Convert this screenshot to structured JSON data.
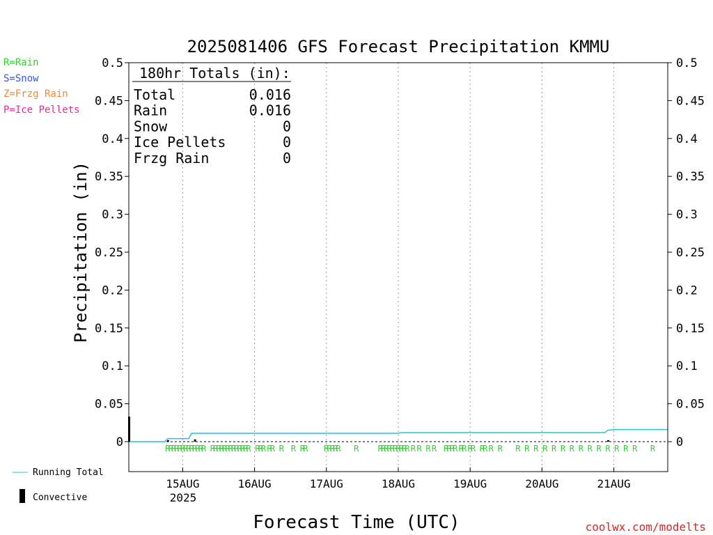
{
  "chart_data": {
    "type": "line",
    "title": "2025081406 GFS Forecast Precipitation KMMU",
    "xlabel": "Forecast Time (UTC)",
    "ylabel": "Precipitation (in)",
    "ylim": [
      0,
      0.5
    ],
    "y_ticks": [
      {
        "label": "0",
        "value": 0
      },
      {
        "label": "0.05",
        "value": 0.05
      },
      {
        "label": "0.1",
        "value": 0.1
      },
      {
        "label": "0.15",
        "value": 0.15
      },
      {
        "label": "0.2",
        "value": 0.2
      },
      {
        "label": "0.25",
        "value": 0.25
      },
      {
        "label": "0.3",
        "value": 0.3
      },
      {
        "label": "0.35",
        "value": 0.35
      },
      {
        "label": "0.4",
        "value": 0.4
      },
      {
        "label": "0.45",
        "value": 0.45
      },
      {
        "label": "0.5",
        "value": 0.5
      }
    ],
    "x_range_hours": [
      0,
      180
    ],
    "x_ticks": [
      {
        "label": "15AUG",
        "hour": 18
      },
      {
        "label": "16AUG",
        "hour": 42
      },
      {
        "label": "17AUG",
        "hour": 66
      },
      {
        "label": "18AUG",
        "hour": 90
      },
      {
        "label": "19AUG",
        "hour": 114
      },
      {
        "label": "20AUG",
        "hour": 138
      },
      {
        "label": "21AUG",
        "hour": 162
      }
    ],
    "x_year_label": "2025",
    "series": [
      {
        "name": "Running Total",
        "color": "#22c4d6",
        "points": [
          [
            0,
            0
          ],
          [
            12,
            0
          ],
          [
            13,
            0.004
          ],
          [
            20,
            0.004
          ],
          [
            21,
            0.011
          ],
          [
            90,
            0.011
          ],
          [
            91,
            0.012
          ],
          [
            159,
            0.012
          ],
          [
            160,
            0.015
          ],
          [
            162,
            0.016
          ],
          [
            180,
            0.016
          ]
        ]
      }
    ],
    "convective_bars": [
      [
        0,
        0.033
      ],
      [
        13,
        0.002
      ],
      [
        22,
        0.003
      ],
      [
        160,
        0.002
      ]
    ],
    "rain_marks": [
      13,
      14,
      15,
      16,
      17,
      18,
      19,
      20,
      21,
      22,
      23,
      24,
      25,
      28,
      29,
      30,
      31,
      32,
      33,
      34,
      35,
      36,
      37,
      38,
      39,
      40,
      43,
      44,
      45,
      47,
      48,
      51,
      55,
      58,
      59,
      66,
      67,
      68,
      69,
      70,
      76,
      84,
      85,
      86,
      87,
      88,
      89,
      90,
      91,
      92,
      93,
      95,
      97,
      100,
      102,
      106,
      107,
      108,
      109,
      111,
      112,
      114,
      115,
      118,
      119,
      121,
      124,
      130,
      133,
      136,
      139,
      142,
      145,
      148,
      151,
      154,
      157,
      160,
      163,
      166,
      169,
      175,
      181
    ],
    "totals": {
      "heading": "180hr Totals (in):",
      "rows": [
        {
          "label": "Total",
          "value": "0.016"
        },
        {
          "label": "Rain",
          "value": "0.016"
        },
        {
          "label": "Snow",
          "value": "0"
        },
        {
          "label": "Ice Pellets",
          "value": "0"
        },
        {
          "label": "Frzg Rain",
          "value": "0"
        }
      ]
    },
    "precip_legend": [
      {
        "label": "R=Rain",
        "color": "#22dd22"
      },
      {
        "label": "S=Snow",
        "color": "#3355ee"
      },
      {
        "label": "Z=Frzg Rain",
        "color": "#ee8833"
      },
      {
        "label": "P=Ice Pellets",
        "color": "#ee2299"
      }
    ],
    "line_legend": [
      {
        "label": "Running Total",
        "color": "#22c4d6"
      },
      {
        "label": "Convective",
        "color": "#000000"
      }
    ],
    "rain_mark_label": "R",
    "rain_mark_color": "#22dd22",
    "credit": "coolwx.com/modelts",
    "credit_color": "#dd2222",
    "grid": "vertical dotted at day boundaries"
  }
}
